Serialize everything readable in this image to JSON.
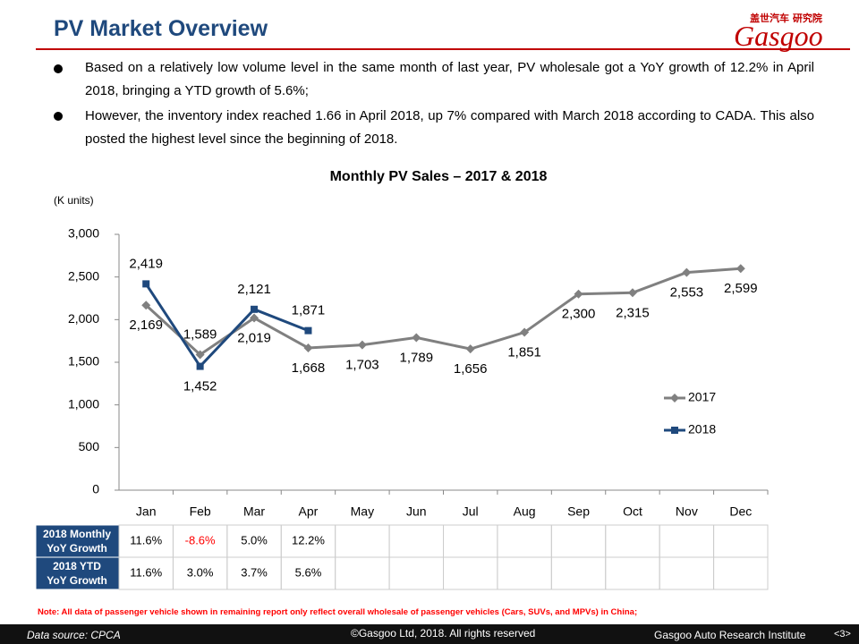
{
  "header": {
    "title": "PV Market Overview",
    "logo": "Gasgoo",
    "logo_sub": "盖世汽车 研究院"
  },
  "bullets": [
    "Based on a relatively low volume level in the same month of last year, PV wholesale got a YoY growth of 12.2% in April 2018, bringing a YTD growth of 5.6%;",
    "However, the inventory index reached 1.66 in April 2018, up 7% compared with March 2018 according to CADA. This also posted the highest level since the beginning of 2018."
  ],
  "chart_data": {
    "type": "line",
    "title": "Monthly PV Sales – 2017 & 2018",
    "y_label": "(K units)",
    "categories": [
      "Jan",
      "Feb",
      "Mar",
      "Apr",
      "May",
      "Jun",
      "Jul",
      "Aug",
      "Sep",
      "Oct",
      "Nov",
      "Dec"
    ],
    "series": [
      {
        "name": "2017",
        "color": "#808080",
        "marker": "diamond",
        "values": [
          2169,
          1589,
          2019,
          1668,
          1703,
          1789,
          1656,
          1851,
          2300,
          2315,
          2553,
          2599
        ],
        "value_labels": [
          "2,169",
          "1,589",
          "2,019",
          "1,668",
          "1,703",
          "1,789",
          "1,656",
          "1,851",
          "2,300",
          "2,315",
          "2,553",
          "2,599"
        ]
      },
      {
        "name": "2018",
        "color": "#1f497d",
        "marker": "square",
        "values": [
          2419,
          1452,
          2121,
          1871,
          null,
          null,
          null,
          null,
          null,
          null,
          null,
          null
        ],
        "value_labels": [
          "2,419",
          "1,452",
          "2,121",
          "1,871",
          null,
          null,
          null,
          null,
          null,
          null,
          null,
          null
        ]
      }
    ],
    "ylim": [
      0,
      3000
    ],
    "yticks": [
      0,
      500,
      {
        "value": 1000,
        "label": "1,000"
      },
      {
        "value": 1500,
        "label": "1,500"
      },
      {
        "value": 2000,
        "label": "2,000"
      },
      {
        "value": 2500,
        "label": "2,500"
      },
      {
        "value": 3000,
        "label": "3,000"
      }
    ],
    "grid": false,
    "legend": "right"
  },
  "table": {
    "rows": [
      {
        "header": "2018 Monthly YoY Growth",
        "cells": [
          "11.6%",
          "-8.6%",
          "5.0%",
          "12.2%"
        ]
      },
      {
        "header": "2018 YTD YoY Growth",
        "cells": [
          "11.6%",
          "3.0%",
          "3.7%",
          "5.6%"
        ]
      }
    ],
    "negative_color": "#ff0000"
  },
  "note": "Note: All data of passenger vehicle shown in remaining report only reflect overall wholesale of passenger vehicles (Cars, SUVs, and MPVs) in China;",
  "footer": {
    "source": "Data source: CPCA",
    "copyright": "©Gasgoo Ltd, 2018.  All rights reserved",
    "institute": "Gasgoo Auto Research Institute",
    "page": "<3>"
  }
}
